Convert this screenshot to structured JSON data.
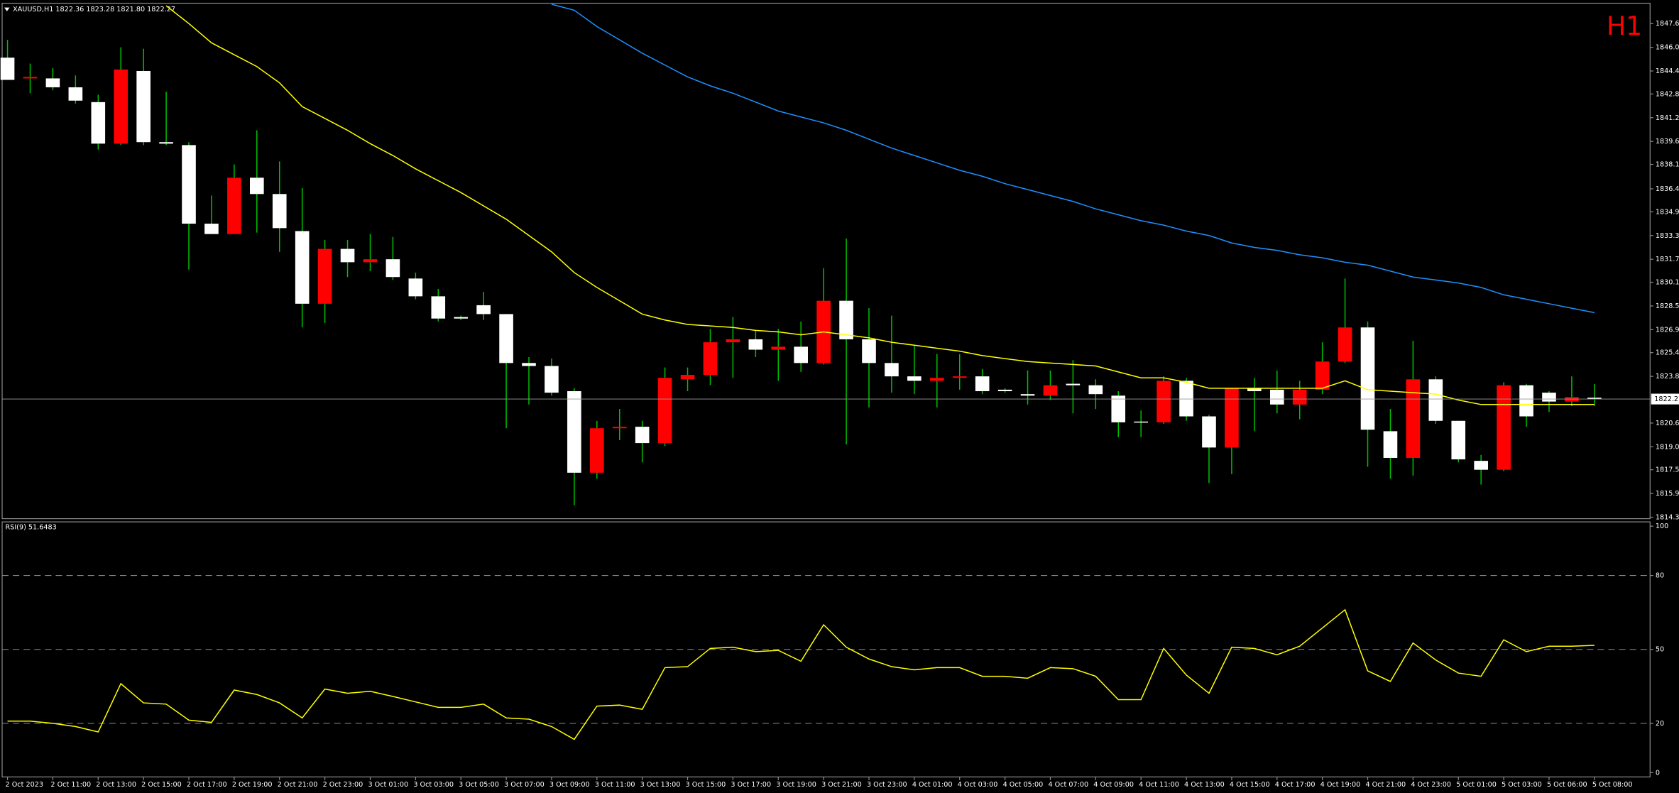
{
  "chart_data": [
    {
      "type": "candlestick",
      "title": "XAUUSD,H1  1822.36 1823.28 1821.80 1822.27",
      "timeframe": "H1",
      "categories": [
        "2 Oct 2023",
        null,
        "2 Oct 11:00",
        null,
        "2 Oct 13:00",
        null,
        "2 Oct 15:00",
        null,
        "2 Oct 17:00",
        null,
        "2 Oct 19:00",
        null,
        "2 Oct 21:00",
        null,
        "2 Oct 23:00",
        null,
        "3 Oct 01:00",
        null,
        "3 Oct 03:00",
        null,
        "3 Oct 05:00",
        null,
        "3 Oct 07:00",
        null,
        "3 Oct 09:00",
        null,
        "3 Oct 11:00",
        null,
        "3 Oct 13:00",
        null,
        "3 Oct 15:00",
        null,
        "3 Oct 17:00",
        null,
        "3 Oct 19:00",
        null,
        "3 Oct 21:00",
        null,
        "3 Oct 23:00",
        null,
        "4 Oct 01:00",
        null,
        "4 Oct 03:00",
        null,
        "4 Oct 05:00",
        null,
        "4 Oct 07:00",
        null,
        "4 Oct 09:00",
        null,
        "4 Oct 11:00",
        null,
        "4 Oct 13:00",
        null,
        "4 Oct 15:00",
        null,
        "4 Oct 17:00",
        null,
        "4 Oct 19:00",
        null,
        "4 Oct 21:00",
        null,
        "4 Oct 23:00",
        null,
        "5 Oct 01:00",
        null,
        "5 Oct 03:00",
        null,
        "5 Oct 06:00",
        null,
        "5 Oct 08:00"
      ],
      "open": [
        1845.3,
        1843.9,
        1843.9,
        1843.3,
        1842.3,
        1839.5,
        1844.4,
        1839.6,
        1839.4,
        1834.1,
        1833.4,
        1837.2,
        1836.1,
        1833.6,
        1828.7,
        1832.4,
        1831.5,
        1831.7,
        1830.4,
        1829.2,
        1827.8,
        1828.6,
        1828.0,
        1824.7,
        1824.5,
        1822.8,
        1817.3,
        1820.3,
        1820.4,
        1819.3,
        1823.6,
        1823.9,
        1826.1,
        1826.3,
        1825.6,
        1825.8,
        1824.7,
        1828.9,
        1826.3,
        1824.7,
        1823.8,
        1823.5,
        1823.7,
        1823.8,
        1822.9,
        1822.6,
        1822.5,
        1823.3,
        1823.2,
        1822.5,
        1820.75,
        1820.7,
        1823.5,
        1821.1,
        1819.0,
        1823.0,
        1822.9,
        1821.9,
        1822.9,
        1824.8,
        1827.1,
        1820.1,
        1818.3,
        1823.6,
        1820.8,
        1818.1,
        1817.5,
        1823.2,
        1822.7,
        1822.1,
        1822.36
      ],
      "high": [
        1846.5,
        1844.9,
        1844.6,
        1844.1,
        1842.8,
        1846.0,
        1845.9,
        1843.0,
        1839.6,
        1836.0,
        1838.1,
        1840.4,
        1838.3,
        1836.5,
        1833.0,
        1833.0,
        1833.4,
        1833.2,
        1830.8,
        1829.7,
        1827.9,
        1829.5,
        1828.0,
        1825.1,
        1825.0,
        1823.0,
        1820.8,
        1821.6,
        1820.8,
        1824.4,
        1824.4,
        1827.0,
        1827.8,
        1826.9,
        1827.0,
        1827.5,
        1831.1,
        1833.1,
        1828.4,
        1827.9,
        1825.9,
        1825.3,
        1825.3,
        1824.3,
        1823.0,
        1824.2,
        1824.2,
        1824.9,
        1823.6,
        1822.8,
        1821.5,
        1823.8,
        1823.7,
        1821.2,
        1823.0,
        1823.7,
        1824.2,
        1823.5,
        1826.1,
        1830.4,
        1827.5,
        1821.6,
        1826.2,
        1823.8,
        1820.8,
        1818.5,
        1823.4,
        1823.3,
        1822.8,
        1823.8,
        1823.28
      ],
      "low": [
        1843.8,
        1842.9,
        1843.1,
        1842.2,
        1839.1,
        1839.4,
        1839.4,
        1839.4,
        1831.0,
        1833.4,
        1833.4,
        1833.5,
        1832.2,
        1827.1,
        1827.4,
        1830.5,
        1830.9,
        1830.3,
        1829.0,
        1827.5,
        1827.6,
        1827.6,
        1820.3,
        1821.9,
        1822.5,
        1815.1,
        1816.9,
        1819.5,
        1818.0,
        1819.1,
        1822.8,
        1823.2,
        1823.7,
        1825.1,
        1823.5,
        1824.1,
        1824.6,
        1819.2,
        1821.7,
        1822.7,
        1822.6,
        1821.7,
        1822.9,
        1822.6,
        1822.7,
        1821.9,
        1822.2,
        1821.3,
        1821.6,
        1819.7,
        1819.7,
        1820.6,
        1820.8,
        1816.6,
        1817.2,
        1820.1,
        1821.3,
        1820.9,
        1822.6,
        1824.7,
        1817.7,
        1816.9,
        1817.1,
        1820.6,
        1818.0,
        1816.5,
        1817.4,
        1820.4,
        1821.4,
        1821.8,
        1821.8
      ],
      "close": [
        1843.8,
        1844.0,
        1843.3,
        1842.4,
        1839.5,
        1844.5,
        1839.6,
        1839.5,
        1834.1,
        1833.4,
        1837.2,
        1836.1,
        1833.8,
        1828.7,
        1832.4,
        1831.5,
        1831.7,
        1830.5,
        1829.2,
        1827.7,
        1827.7,
        1828.0,
        1824.7,
        1824.5,
        1822.7,
        1817.3,
        1820.3,
        1820.4,
        1819.3,
        1823.7,
        1823.9,
        1826.1,
        1826.3,
        1825.6,
        1825.8,
        1824.7,
        1828.9,
        1826.3,
        1824.7,
        1823.8,
        1823.5,
        1823.7,
        1823.8,
        1822.8,
        1822.8,
        1822.5,
        1823.2,
        1823.2,
        1822.6,
        1820.7,
        1820.7,
        1823.5,
        1821.1,
        1819.0,
        1823.0,
        1822.8,
        1821.9,
        1822.9,
        1824.8,
        1827.1,
        1820.2,
        1818.3,
        1823.6,
        1820.8,
        1818.2,
        1817.5,
        1823.2,
        1821.1,
        1822.1,
        1822.4,
        1822.27
      ],
      "up_color": "#ff0000",
      "down_color": "#ffffff",
      "wick_color": "#00c000",
      "price_line_color": "#9a9a9a",
      "series": [
        {
          "color": "#ffff00",
          "values": [
            null,
            null,
            null,
            null,
            null,
            null,
            null,
            1848.8,
            1847.6,
            1846.3,
            1845.5,
            1844.7,
            1843.6,
            1842.0,
            1841.2,
            1840.4,
            1839.5,
            1838.7,
            1837.8,
            1837.0,
            1836.2,
            1835.3,
            1834.4,
            1833.3,
            1832.2,
            1830.8,
            1829.8,
            1828.9,
            1828.0,
            1827.6,
            1827.3,
            1827.2,
            1827.1,
            1826.9,
            1826.8,
            1826.6,
            1826.8,
            1826.6,
            1826.4,
            1826.1,
            1825.9,
            1825.7,
            1825.5,
            1825.2,
            1825.0,
            1824.8,
            1824.7,
            1824.6,
            1824.5,
            1824.1,
            1823.7,
            1823.7,
            1823.4,
            1823.0,
            1823.0,
            1823.0,
            1823.0,
            1823.0,
            1823.0,
            1823.5,
            1822.9,
            1822.8,
            1822.7,
            1822.6,
            1822.2,
            1821.9,
            1821.9,
            1821.9,
            1821.9,
            1821.9,
            1821.9
          ]
        },
        {
          "color": "#1e90ff",
          "values": [
            null,
            null,
            null,
            null,
            null,
            null,
            null,
            null,
            null,
            null,
            null,
            null,
            null,
            null,
            null,
            null,
            null,
            null,
            null,
            null,
            null,
            null,
            null,
            null,
            1848.9,
            1848.5,
            1847.4,
            1846.5,
            1845.6,
            1844.8,
            1844.0,
            1843.4,
            1842.9,
            1842.3,
            1841.7,
            1841.3,
            1840.9,
            1840.4,
            1839.8,
            1839.2,
            1838.7,
            1838.2,
            1837.7,
            1837.3,
            1836.8,
            1836.4,
            1836.0,
            1835.6,
            1835.1,
            1834.7,
            1834.3,
            1834.0,
            1833.6,
            1833.3,
            1832.8,
            1832.5,
            1832.3,
            1832.0,
            1831.8,
            1831.5,
            1831.3,
            1830.9,
            1830.5,
            1830.3,
            1830.1,
            1829.8,
            1829.3,
            1829.0,
            1828.7,
            1828.4,
            1828.1
          ]
        }
      ],
      "ylim": [
        1814.2,
        1848.9
      ],
      "yticks": [
        {
          "value": 1847.6,
          "label": "1847.60"
        },
        {
          "value": 1846,
          "label": "1846.00"
        },
        {
          "value": 1844.4,
          "label": "1844.40"
        },
        {
          "value": 1842.85,
          "label": "1842.85"
        },
        {
          "value": 1841.25,
          "label": "1841.25"
        },
        {
          "value": 1839.65,
          "label": "1839.65"
        },
        {
          "value": 1838.1,
          "label": "1838.10"
        },
        {
          "value": 1836.45,
          "label": "1836.45"
        },
        {
          "value": 1834.9,
          "label": "1834.90"
        },
        {
          "value": 1833.3,
          "label": "1833.30"
        },
        {
          "value": 1831.7,
          "label": "1831.70"
        },
        {
          "value": 1830.15,
          "label": "1830.15"
        },
        {
          "value": 1828.55,
          "label": "1828.55"
        },
        {
          "value": 1826.95,
          "label": "1826.95"
        },
        {
          "value": 1825.4,
          "label": "1825.40"
        },
        {
          "value": 1823.8,
          "label": "1823.80"
        },
        {
          "value": 1820.65,
          "label": "1820.65"
        },
        {
          "value": 1819.05,
          "label": "1819.05"
        },
        {
          "value": 1817.5,
          "label": "1817.50"
        },
        {
          "value": 1815.9,
          "label": "1815.90"
        },
        {
          "value": 1814.3,
          "label": "1814.30"
        }
      ]
    },
    {
      "type": "line",
      "title": "RSI(9) 51.6483",
      "series": [
        {
          "color": "#ffff00",
          "values": [
            20.9,
            20.9,
            20.0,
            18.7,
            16.5,
            36.1,
            28.3,
            27.8,
            21.3,
            20.4,
            33.5,
            31.7,
            28.3,
            22.2,
            33.9,
            32.2,
            33.0,
            30.9,
            28.7,
            26.5,
            26.5,
            27.8,
            22.2,
            21.7,
            18.7,
            13.5,
            27.0,
            27.4,
            25.7,
            42.6,
            43.0,
            50.4,
            50.9,
            49.1,
            49.6,
            45.2,
            60.0,
            50.9,
            46.1,
            43.0,
            41.7,
            42.6,
            42.6,
            39.1,
            39.1,
            38.3,
            42.6,
            42.2,
            39.1,
            29.6,
            29.6,
            50.4,
            39.6,
            32.2,
            50.9,
            50.4,
            47.8,
            51.3,
            58.7,
            66.1,
            41.3,
            37.0,
            52.6,
            45.7,
            40.4,
            39.1,
            53.9,
            49.1,
            51.3,
            51.3,
            51.6483
          ]
        }
      ],
      "ylim": [
        0,
        100
      ],
      "yticks": [
        0,
        20,
        50,
        80,
        100
      ],
      "levels": [
        20,
        50,
        80
      ]
    }
  ]
}
